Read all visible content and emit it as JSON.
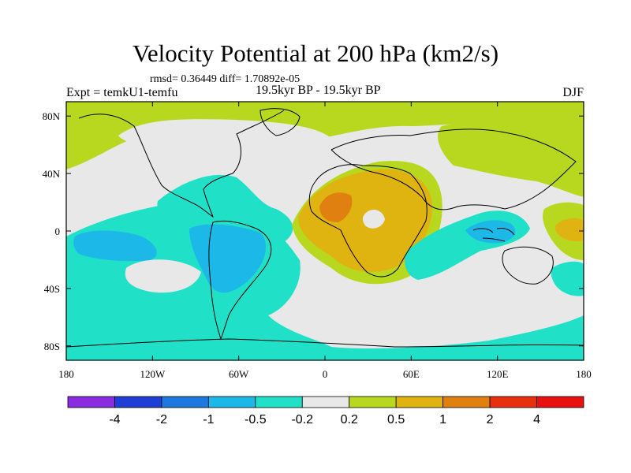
{
  "chart_data": {
    "type": "heatmap",
    "title": "Velocity Potential at 200 hPa (km2/s)",
    "subtitle": "rmsd= 0.36449 diff= 1.70892e-05",
    "left_label": "Expt = temkU1-temfu",
    "center_label": "19.5kyr BP - 19.5kyr BP",
    "right_label": "DJF",
    "x_ticks": [
      {
        "value": -180,
        "label": "180"
      },
      {
        "value": -120,
        "label": "120W"
      },
      {
        "value": -60,
        "label": "60W"
      },
      {
        "value": 0,
        "label": "0"
      },
      {
        "value": 60,
        "label": "60E"
      },
      {
        "value": 120,
        "label": "120E"
      },
      {
        "value": 180,
        "label": "180"
      }
    ],
    "y_ticks": [
      {
        "value": 80,
        "label": "80N"
      },
      {
        "value": 40,
        "label": "40N"
      },
      {
        "value": 0,
        "label": "0"
      },
      {
        "value": -40,
        "label": "40S"
      },
      {
        "value": -80,
        "label": "80S"
      }
    ],
    "xlim": [
      -180,
      180
    ],
    "ylim": [
      -90,
      90
    ],
    "colorbar": {
      "levels": [
        -4,
        -2,
        -1,
        -0.5,
        -0.2,
        0.2,
        0.5,
        1,
        2,
        4
      ],
      "labels": [
        "-4",
        "-2",
        "-1",
        "-0.5",
        "-0.2",
        "0.2",
        "0.5",
        "1",
        "2",
        "4"
      ],
      "colors": [
        "#8a2be2",
        "#1e3ed6",
        "#1e78e0",
        "#1cb8e8",
        "#20e0c8",
        "#e8e8e8",
        "#b8d820",
        "#e0b410",
        "#e08010",
        "#e83010",
        "#e81010"
      ]
    }
  }
}
